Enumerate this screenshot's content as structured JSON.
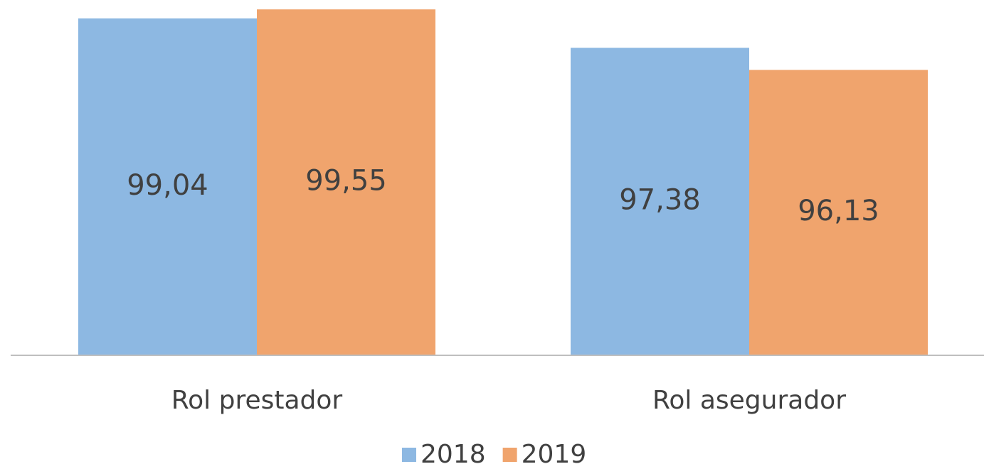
{
  "chart_data": {
    "type": "bar",
    "categories": [
      "Rol prestador",
      "Rol asegurador"
    ],
    "series": [
      {
        "name": "2018",
        "color": "#8db8e2",
        "values": [
          99.04,
          97.38
        ],
        "value_labels": [
          "99,04",
          "97,38"
        ]
      },
      {
        "name": "2019",
        "color": "#f0a46d",
        "values": [
          99.55,
          96.13
        ],
        "value_labels": [
          "99,55",
          "96,13"
        ]
      }
    ],
    "ylim": [
      80,
      100
    ]
  }
}
